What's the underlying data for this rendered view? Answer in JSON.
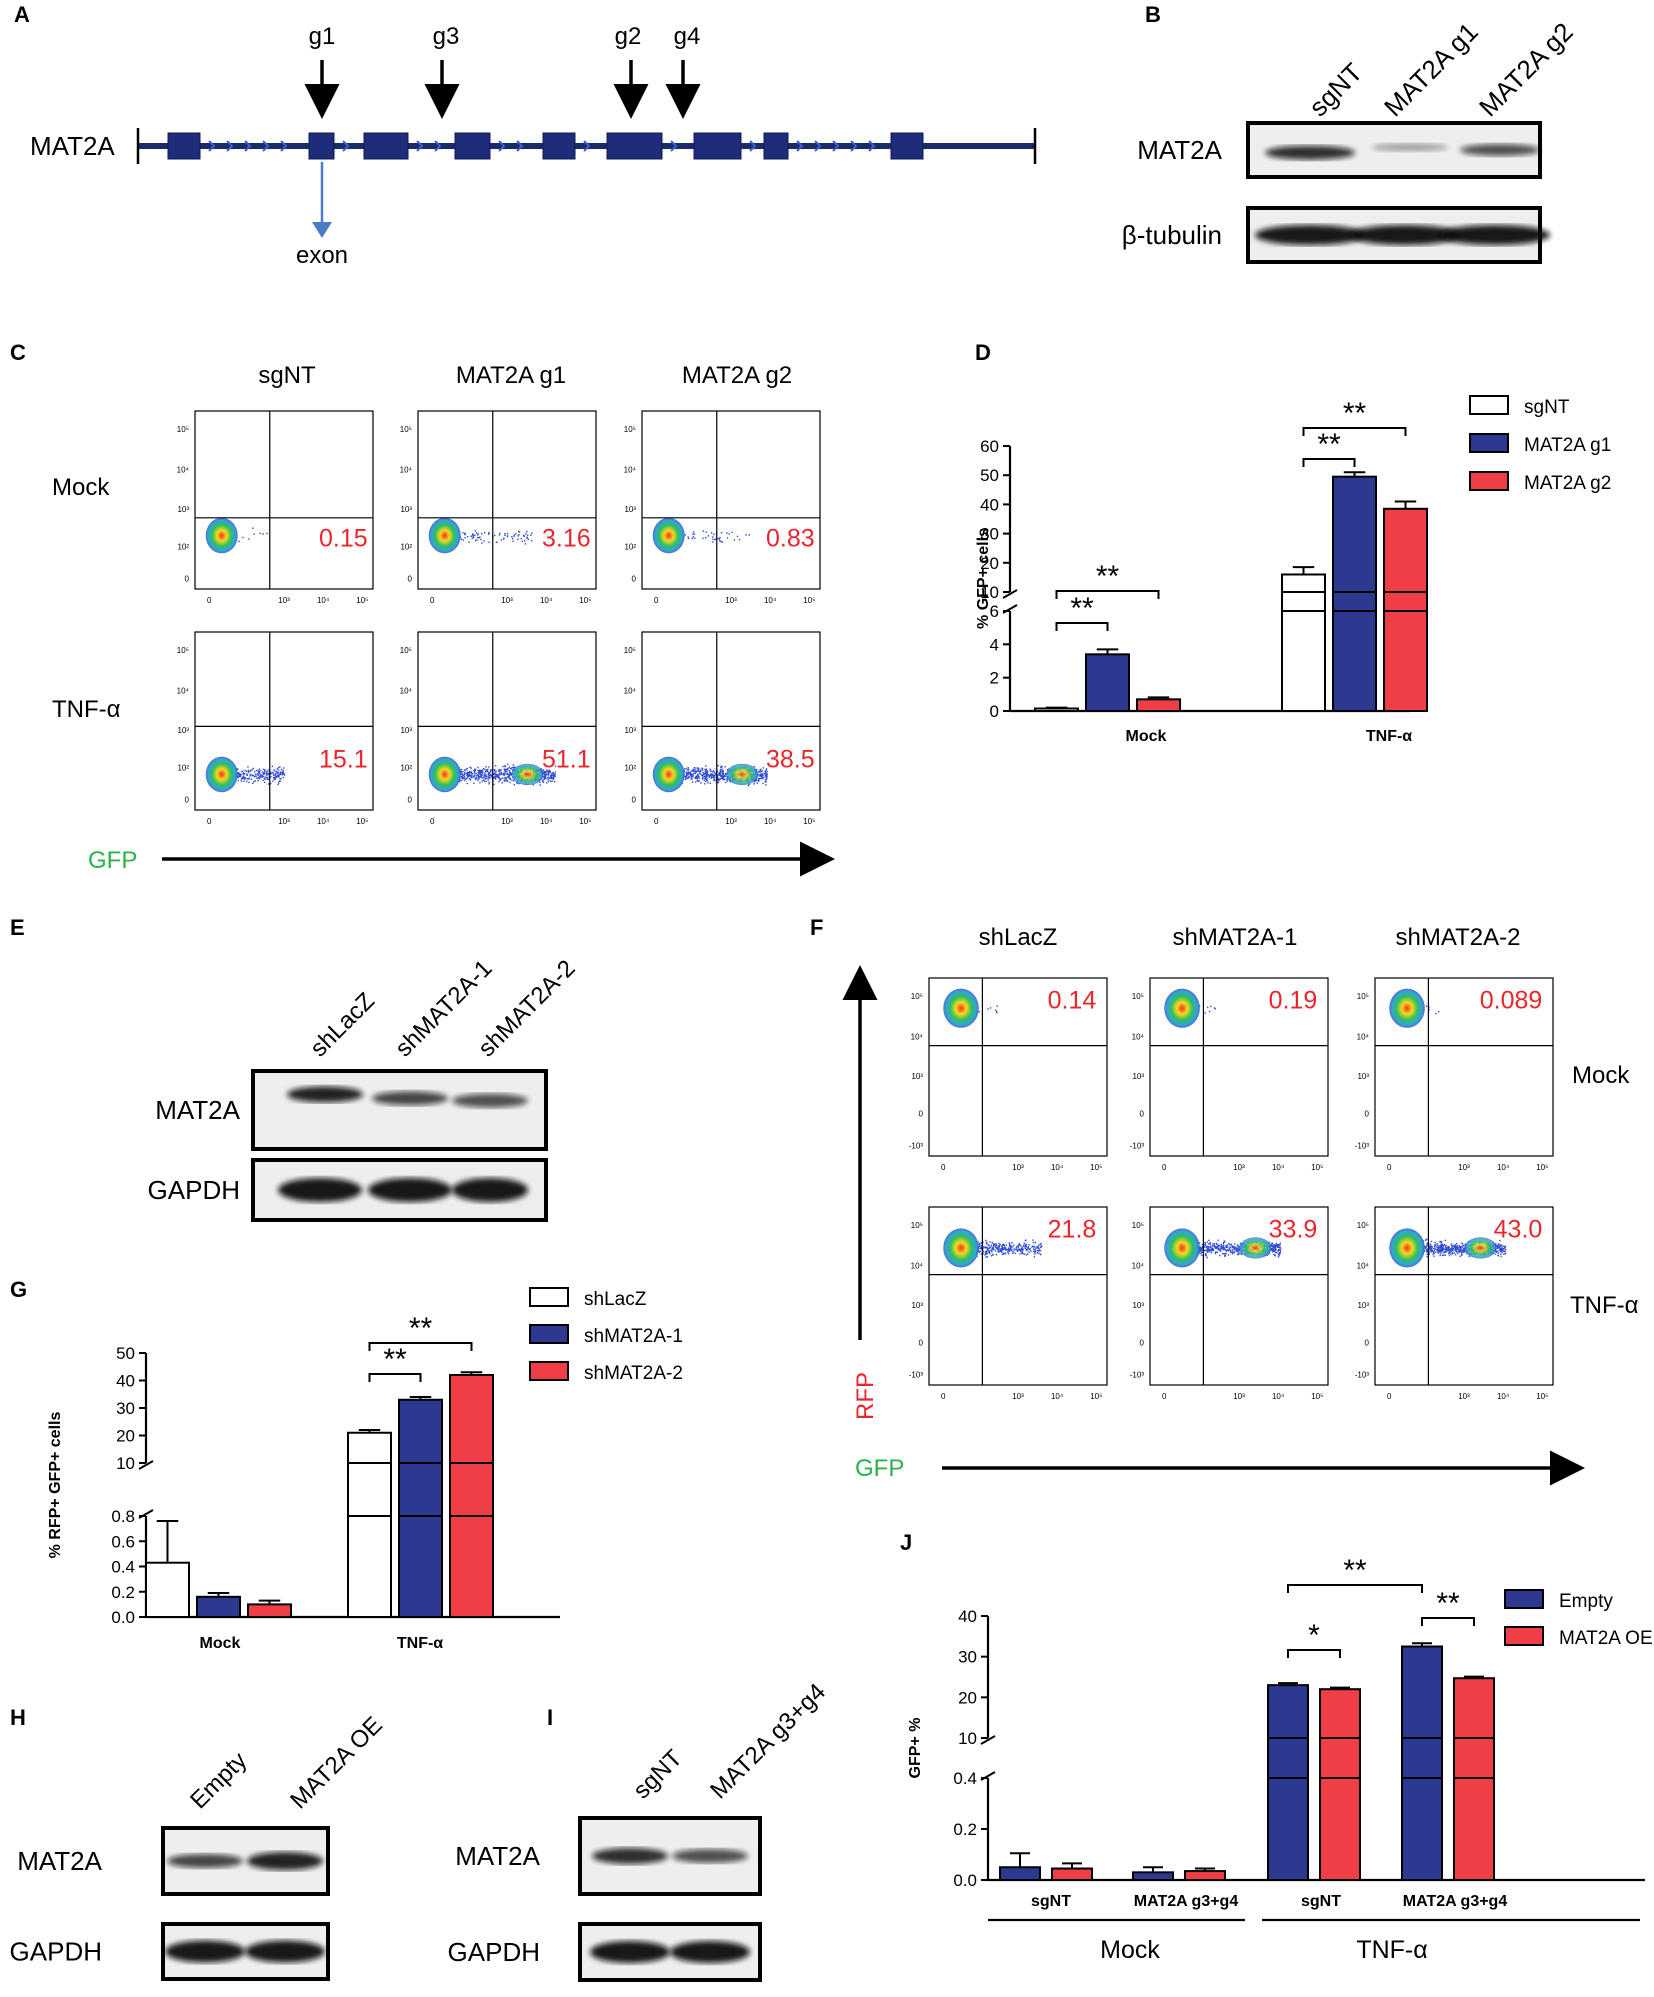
{
  "panel_letters": {
    "A": "A",
    "B": "B",
    "C": "C",
    "D": "D",
    "E": "E",
    "F": "F",
    "G": "G",
    "H": "H",
    "I": "I",
    "J": "J"
  },
  "panelA": {
    "gene": "MAT2A",
    "guides": [
      "g1",
      "g3",
      "g2",
      "g4"
    ],
    "exon_label": "exon"
  },
  "panelB": {
    "lanes": [
      "sgNT",
      "MAT2A g1",
      "MAT2A g2"
    ],
    "rows": [
      "MAT2A",
      "β-tubulin"
    ]
  },
  "panelC": {
    "columns": [
      "sgNT",
      "MAT2A g1",
      "MAT2A g2"
    ],
    "rows": [
      "Mock",
      "TNF-α"
    ],
    "values": [
      [
        "0.15",
        "3.16",
        "0.83"
      ],
      [
        "15.1",
        "51.1",
        "38.5"
      ]
    ],
    "x_label": "GFP",
    "ticks": {
      "x": [
        "0",
        "10³",
        "10⁴",
        "10⁵"
      ],
      "y": [
        "0",
        "10²",
        "10³",
        "10⁴",
        "10⁵"
      ]
    }
  },
  "panelF": {
    "columns": [
      "shLacZ",
      "shMAT2A-1",
      "shMAT2A-2"
    ],
    "rows": [
      "Mock",
      "TNF-α"
    ],
    "values": [
      [
        "0.14",
        "0.19",
        "0.089"
      ],
      [
        "21.8",
        "33.9",
        "43.0"
      ]
    ],
    "x_label": "GFP",
    "y_label": "RFP",
    "ticks": {
      "x": [
        "0",
        "10³",
        "10⁴",
        "10⁵"
      ],
      "y": [
        "-10³",
        "0",
        "10³",
        "10⁴",
        "10⁵"
      ]
    }
  },
  "panelE": {
    "lanes": [
      "shLacZ",
      "shMAT2A-1",
      "shMAT2A-2"
    ],
    "rows": [
      "MAT2A",
      "GAPDH"
    ]
  },
  "panelH": {
    "lanes": [
      "Empty",
      "MAT2A OE"
    ],
    "rows": [
      "MAT2A",
      "GAPDH"
    ]
  },
  "panelI": {
    "lanes": [
      "sgNT",
      "MAT2A g3+g4"
    ],
    "rows": [
      "MAT2A",
      "GAPDH"
    ]
  },
  "colors": {
    "white": "#ffffff",
    "blue": "#2b3990",
    "red": "#ef3e45",
    "number_red": "#e8262b",
    "gfp_green": "#2bb24c"
  },
  "chart_data": [
    {
      "id": "D",
      "type": "bar",
      "ylabel": "% GFP+ cells",
      "categories": [
        "Mock",
        "TNF-α"
      ],
      "series": [
        {
          "name": "sgNT",
          "color": "white",
          "values": [
            0.15,
            16.0
          ],
          "errors": [
            0.05,
            2.5
          ]
        },
        {
          "name": "MAT2A g1",
          "color": "blue",
          "values": [
            3.4,
            49.5
          ],
          "errors": [
            0.3,
            1.5
          ]
        },
        {
          "name": "MAT2A g2",
          "color": "red",
          "values": [
            0.7,
            38.5
          ],
          "errors": [
            0.12,
            2.5
          ]
        }
      ],
      "lower_axis": {
        "range": [
          0,
          6
        ],
        "ticks": [
          0,
          2,
          4,
          6
        ]
      },
      "upper_axis": {
        "range": [
          10,
          60
        ],
        "ticks": [
          10,
          20,
          30,
          40,
          50,
          60
        ]
      },
      "significance": [
        {
          "group": "Mock",
          "from": "sgNT",
          "to": "MAT2A g1",
          "label": "**"
        },
        {
          "group": "Mock",
          "from": "sgNT",
          "to": "MAT2A g2",
          "label": "**"
        },
        {
          "group": "TNF-α",
          "from": "sgNT",
          "to": "MAT2A g1",
          "label": "**"
        },
        {
          "group": "TNF-α",
          "from": "sgNT",
          "to": "MAT2A g2",
          "label": "**"
        }
      ],
      "legend_position": "top-right"
    },
    {
      "id": "G",
      "type": "bar",
      "ylabel": "% RFP+ GFP+ cells",
      "categories": [
        "Mock",
        "TNF-α"
      ],
      "series": [
        {
          "name": "shLacZ",
          "color": "white",
          "values": [
            0.43,
            21.0
          ],
          "errors": [
            0.33,
            1.0
          ]
        },
        {
          "name": "shMAT2A-1",
          "color": "blue",
          "values": [
            0.16,
            33.0
          ],
          "errors": [
            0.03,
            1.0
          ]
        },
        {
          "name": "shMAT2A-2",
          "color": "red",
          "values": [
            0.1,
            42.0
          ],
          "errors": [
            0.03,
            1.0
          ]
        }
      ],
      "lower_axis": {
        "range": [
          0,
          0.8
        ],
        "ticks": [
          0.0,
          0.2,
          0.4,
          0.6,
          0.8
        ]
      },
      "upper_axis": {
        "range": [
          10,
          50
        ],
        "ticks": [
          10,
          20,
          30,
          40,
          50
        ]
      },
      "significance": [
        {
          "group": "TNF-α",
          "from": "shLacZ",
          "to": "shMAT2A-1",
          "label": "**"
        },
        {
          "group": "TNF-α",
          "from": "shLacZ",
          "to": "shMAT2A-2",
          "label": "**"
        }
      ],
      "legend_position": "top-right"
    },
    {
      "id": "J",
      "type": "bar",
      "ylabel": "GFP+ %",
      "categories": [
        "sgNT",
        "MAT2A g3+g4",
        "sgNT",
        "MAT2A g3+g4"
      ],
      "groups": [
        "Mock",
        "TNF-α"
      ],
      "series": [
        {
          "name": "Empty",
          "color": "blue",
          "values": [
            0.05,
            0.03,
            23.0,
            32.5
          ],
          "errors": [
            0.055,
            0.02,
            0.5,
            0.8
          ]
        },
        {
          "name": "MAT2A OE",
          "color": "red",
          "values": [
            0.045,
            0.035,
            22.0,
            24.7
          ],
          "errors": [
            0.02,
            0.01,
            0.4,
            0.4
          ]
        }
      ],
      "lower_axis": {
        "range": [
          0,
          0.4
        ],
        "ticks": [
          0.0,
          0.2,
          0.4
        ]
      },
      "upper_axis": {
        "range": [
          10,
          40
        ],
        "ticks": [
          10,
          20,
          30,
          40
        ]
      },
      "significance": [
        {
          "label": "*",
          "cluster": 2
        },
        {
          "label": "**",
          "cluster": 3
        },
        {
          "label": "**",
          "between": [
            2,
            3
          ]
        }
      ],
      "legend_position": "top-right"
    }
  ]
}
